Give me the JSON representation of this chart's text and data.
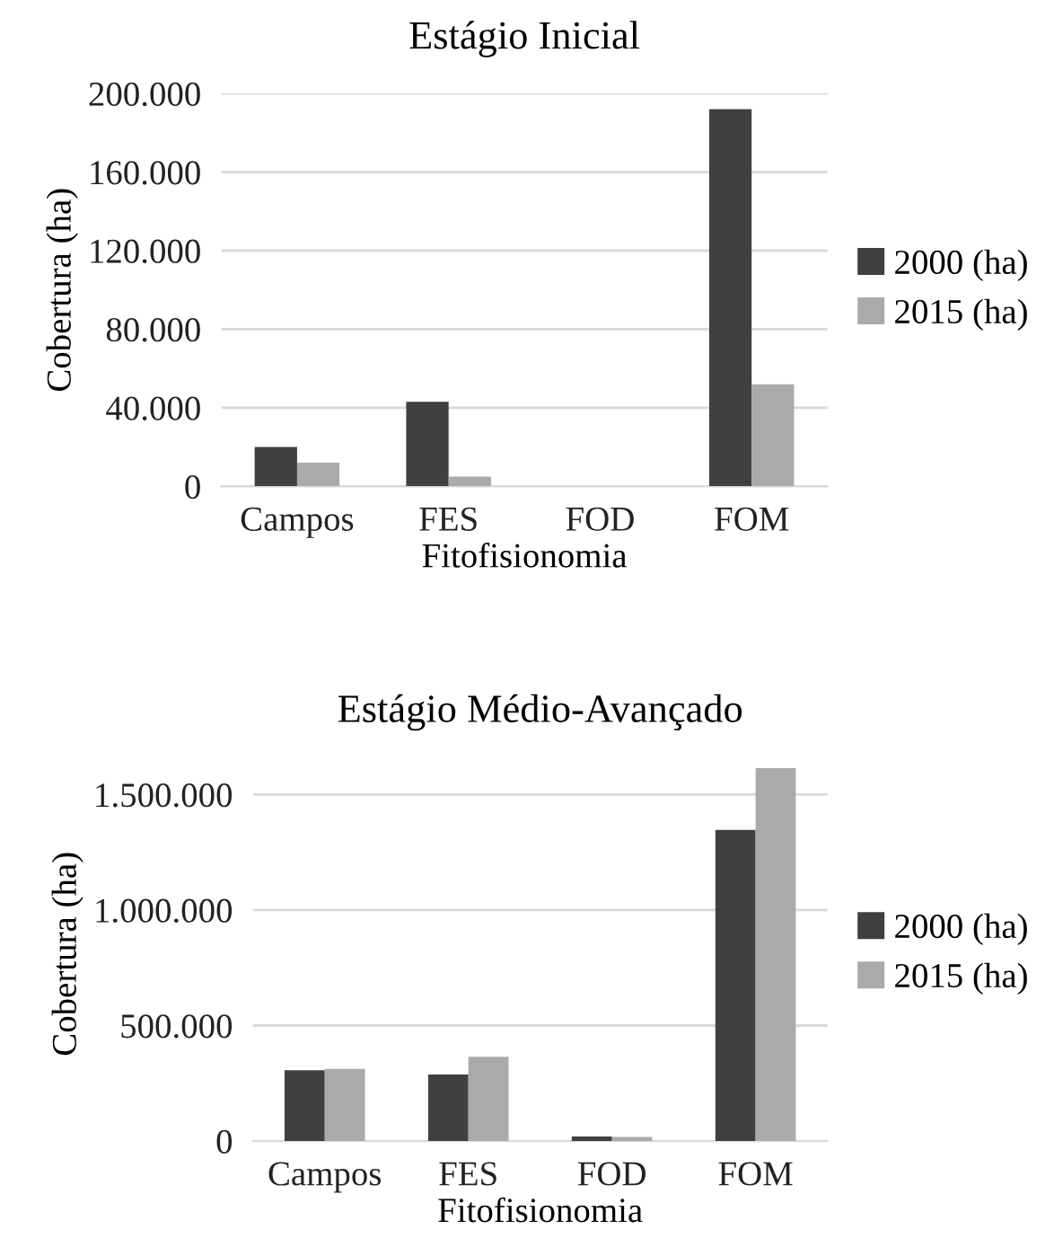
{
  "chart_data": [
    {
      "type": "bar",
      "title": "Estágio Inicial",
      "xlabel": "Fitofisionomia",
      "ylabel": "Cobertura (ha)",
      "categories": [
        "Campos",
        "FES",
        "FOD",
        "FOM"
      ],
      "series": [
        {
          "name": "2000 (ha)",
          "color": "#404040",
          "values": [
            20000,
            43000,
            0,
            192000
          ]
        },
        {
          "name": "2015 (ha)",
          "color": "#aaaaaa",
          "values": [
            12000,
            5000,
            0,
            52000
          ]
        }
      ],
      "ylim": [
        0,
        200000
      ],
      "yticks": [
        0,
        {
          "value": 40000,
          "label": "40.000"
        },
        {
          "value": 80000,
          "label": "80.000"
        },
        {
          "value": 120000,
          "label": "120.000"
        },
        {
          "value": 160000,
          "label": "160.000"
        },
        {
          "value": 200000,
          "label": "200.000"
        }
      ],
      "grid": "y",
      "legend": "right"
    },
    {
      "type": "bar",
      "title": "Estágio Médio-Avançado",
      "xlabel": "Fitofisionomia",
      "ylabel": "Cobertura (ha)",
      "categories": [
        "Campos",
        "FES",
        "FOD",
        "FOM"
      ],
      "series": [
        {
          "name": "2000 (ha)",
          "color": "#404040",
          "values": [
            306000,
            288000,
            20000,
            1347000
          ]
        },
        {
          "name": "2015 (ha)",
          "color": "#aaaaaa",
          "values": [
            312000,
            365000,
            18000,
            1615000
          ]
        }
      ],
      "ylim": [
        0,
        1620000
      ],
      "yticks": [
        0,
        {
          "value": 500000,
          "label": "500.000"
        },
        {
          "value": 1000000,
          "label": "1.000.000"
        },
        {
          "value": 1500000,
          "label": "1.500.000"
        }
      ],
      "grid": "y",
      "legend": "right"
    }
  ]
}
